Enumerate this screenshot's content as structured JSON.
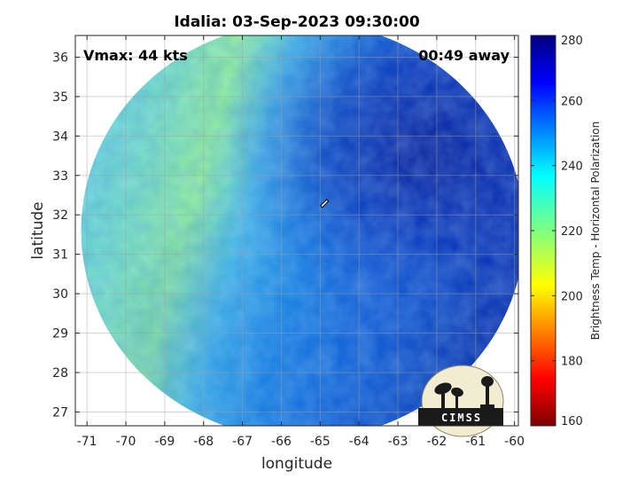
{
  "title": "Idalia: 03-Sep-2023 09:30:00",
  "overlay": {
    "vmax": "Vmax: 44 kts",
    "away": "00:49 away"
  },
  "axes": {
    "xlabel": "longitude",
    "ylabel": "latitude",
    "x_ticks": [
      "-71",
      "-70",
      "-69",
      "-68",
      "-67",
      "-66",
      "-65",
      "-64",
      "-63",
      "-62",
      "-61",
      "-60"
    ],
    "y_ticks": [
      "27",
      "28",
      "29",
      "30",
      "31",
      "32",
      "33",
      "34",
      "35",
      "36"
    ],
    "xlim": [
      -71.3,
      -59.9
    ],
    "ylim": [
      26.65,
      36.55
    ]
  },
  "colorbar": {
    "label": "Brightness Temp - Horizontal Polarization",
    "ticks": [
      "160",
      "180",
      "200",
      "220",
      "240",
      "260",
      "280"
    ],
    "range": [
      160,
      280
    ],
    "colormap": "jet"
  },
  "storm_center": {
    "lon": -64.9,
    "lat": 32.3
  },
  "swath_center": {
    "lon": -65.45,
    "lat": 31.6
  },
  "logo": {
    "text": "CIMSS"
  },
  "colors": {
    "cold_core": "#0a2ab0",
    "mid": "#1aa0f0",
    "warm_band": "#7ee4a0",
    "background": "#ffffff"
  }
}
